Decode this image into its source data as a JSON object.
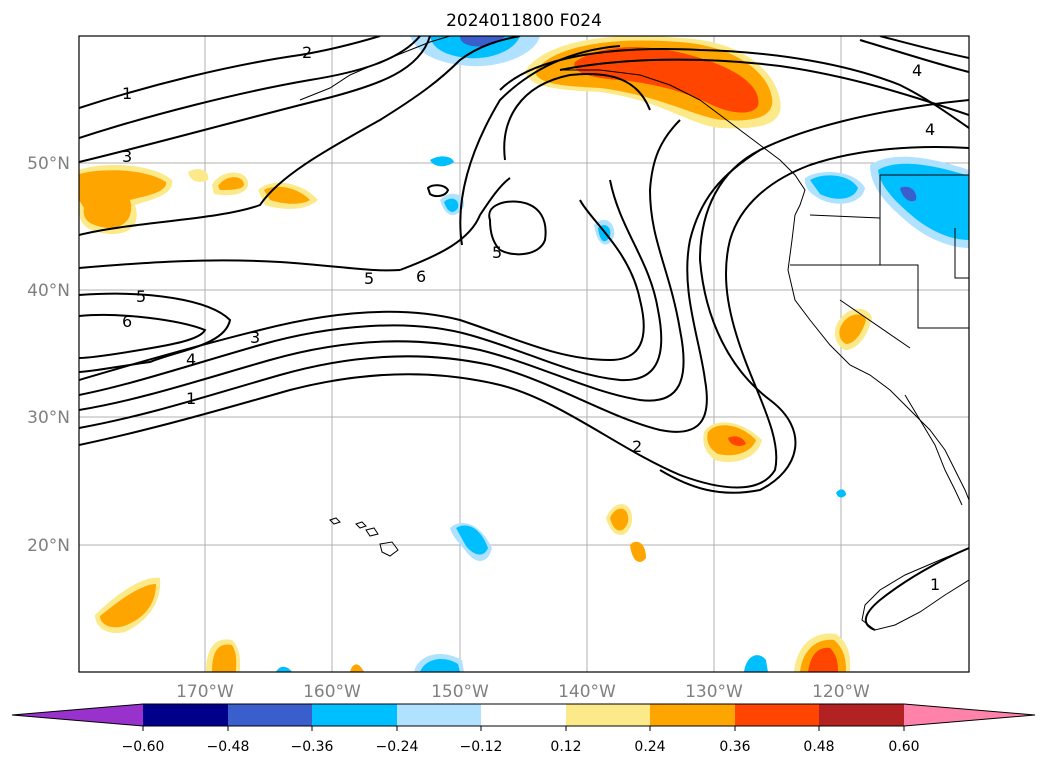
{
  "title": "2024011800 F024",
  "latitude_labels": [
    "50°N",
    "40°N",
    "30°N",
    "20°N"
  ],
  "longitude_labels": [
    "170°W",
    "160°W",
    "150°W",
    "140°W",
    "130°W",
    "120°W"
  ],
  "colorbar": {
    "ticks": [
      "−0.60",
      "−0.48",
      "−0.36",
      "−0.24",
      "−0.12",
      "0.12",
      "0.24",
      "0.36",
      "0.48",
      "0.60"
    ],
    "colors": [
      "#9932cc",
      "#00008b",
      "#3a5fcd",
      "#00bfff",
      "#b0e2ff",
      "#ffffff",
      "#fce98a",
      "#ffa500",
      "#ff4500",
      "#b22222",
      "#ff82ab"
    ]
  },
  "contour_labels": [
    "1",
    "3",
    "5",
    "6",
    "4",
    "3",
    "1",
    "5",
    "6",
    "5",
    "2",
    "4",
    "4",
    "1",
    "2"
  ]
}
